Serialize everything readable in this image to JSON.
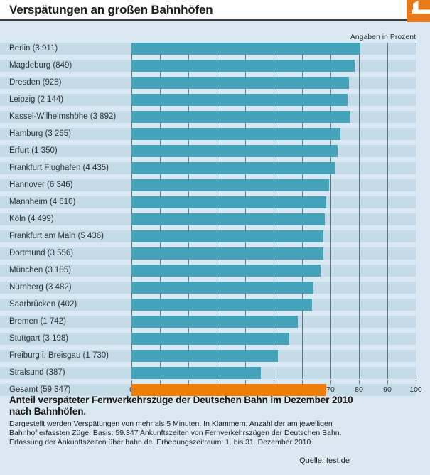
{
  "header": {
    "title": "Verspätungen an großen Bahnhöfen"
  },
  "chart": {
    "unit_note": "Angaben in Prozent"
  },
  "chart_data": {
    "type": "bar",
    "orientation": "horizontal",
    "title": "Verspätungen an großen Bahnhöfen",
    "xlabel": "Prozent",
    "xlim": [
      0,
      100
    ],
    "x_ticks": [
      0,
      10,
      20,
      30,
      40,
      50,
      60,
      70,
      80,
      90,
      100
    ],
    "grid": true,
    "bar_color": "#43a3ba",
    "highlight_color": "#ee7d05",
    "rows": [
      {
        "station": "Berlin",
        "count": "3 911",
        "value": 80.5,
        "highlight": false
      },
      {
        "station": "Magdeburg",
        "count": "849",
        "value": 78.5,
        "highlight": false
      },
      {
        "station": "Dresden",
        "count": "928",
        "value": 76.5,
        "highlight": false
      },
      {
        "station": "Leipzig",
        "count": "2 144",
        "value": 76.0,
        "highlight": false
      },
      {
        "station": "Kassel-Wilhelmshöhe",
        "count": "3 892",
        "value": 76.7,
        "highlight": false
      },
      {
        "station": "Hamburg",
        "count": "3 265",
        "value": 73.5,
        "highlight": false
      },
      {
        "station": "Erfurt",
        "count": "1 350",
        "value": 72.5,
        "highlight": false
      },
      {
        "station": "Frankfurt Flughafen",
        "count": "4 435",
        "value": 71.5,
        "highlight": false
      },
      {
        "station": "Hannover",
        "count": "6 346",
        "value": 69.5,
        "highlight": false
      },
      {
        "station": "Mannheim",
        "count": "4 610",
        "value": 68.5,
        "highlight": false
      },
      {
        "station": "Köln",
        "count": "4 499",
        "value": 68.0,
        "highlight": false
      },
      {
        "station": "Frankfurt am Main",
        "count": "5 436",
        "value": 67.5,
        "highlight": false
      },
      {
        "station": "Dortmund",
        "count": "3 556",
        "value": 67.5,
        "highlight": false
      },
      {
        "station": "München",
        "count": "3 185",
        "value": 66.5,
        "highlight": false
      },
      {
        "station": "Nürnberg",
        "count": "3 482",
        "value": 64.0,
        "highlight": false
      },
      {
        "station": "Saarbrücken",
        "count": "402",
        "value": 63.5,
        "highlight": false
      },
      {
        "station": "Bremen",
        "count": "1 742",
        "value": 58.5,
        "highlight": false
      },
      {
        "station": "Stuttgart",
        "count": "3 198",
        "value": 55.5,
        "highlight": false
      },
      {
        "station": "Freiburg i. Breisgau",
        "count": "1 730",
        "value": 51.5,
        "highlight": false
      },
      {
        "station": "Stralsund",
        "count": "387",
        "value": 45.5,
        "highlight": false
      },
      {
        "station": "Gesamt",
        "count": "59 347",
        "value": 68.5,
        "highlight": true
      }
    ]
  },
  "footer": {
    "heading": "Anteil verspäteter Fernverkehrszüge der Deutschen Bahn im Dezember 2010\nnach Bahnhöfen.",
    "body": "Dargestellt werden Verspätungen von mehr als 5 Minuten. In Klammern: Anzahl der am jeweiligen\nBahnhof erfassten Züge. Basis: 59.347 Ankunftszeiten von Fernverkehrszügen der Deutschen Bahn.\nErfassung der Ankunftszeiten über bahn.de. Erhebungszeitraum: 1. bis 31. Dezember 2010.",
    "source": "Quelle: test.de"
  }
}
